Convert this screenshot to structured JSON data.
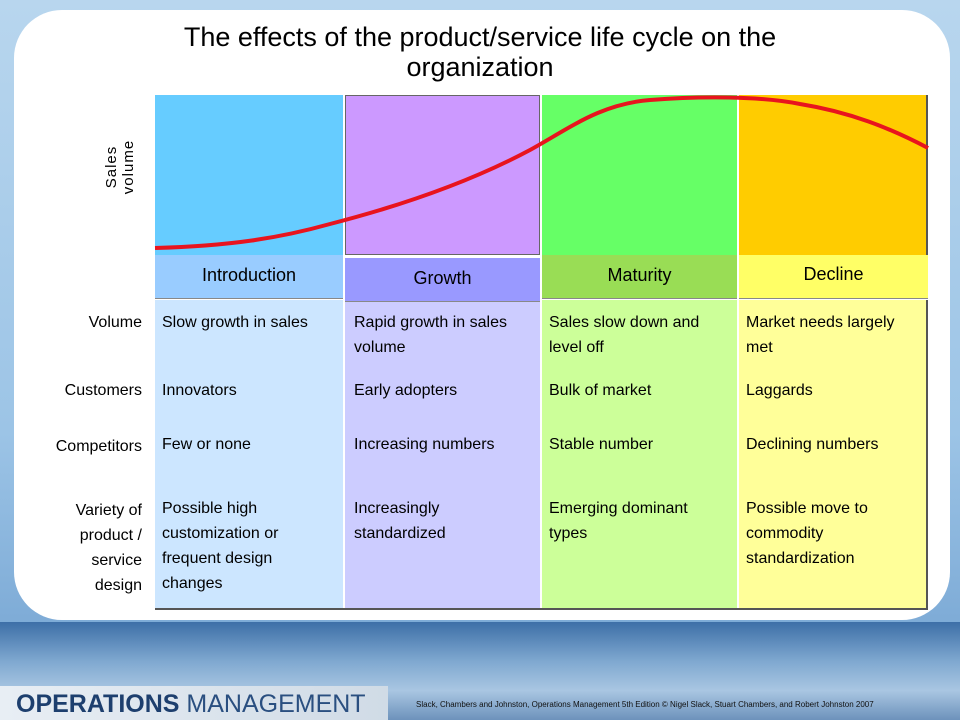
{
  "title": "The effects of the product/service life cycle on the organization",
  "y_axis_label": "Sales volume",
  "row_labels": [
    "Volume",
    "Customers",
    "Competitors",
    "Variety of product / service design"
  ],
  "stages": [
    {
      "name": "Introduction",
      "cells": [
        "Slow growth in sales",
        "Innovators",
        "Few or none",
        "Possible high customization or frequent design changes"
      ]
    },
    {
      "name": "Growth",
      "cells": [
        "Rapid growth in sales volume",
        "Early adopters",
        "Increasing numbers",
        "Increasingly standardized"
      ]
    },
    {
      "name": "Maturity",
      "cells": [
        "Sales slow down and level off",
        "Bulk of market",
        "Stable number",
        "Emerging dominant types"
      ]
    },
    {
      "name": "Decline",
      "cells": [
        "Market needs largely met",
        "Laggards",
        "Declining numbers",
        "Possible move to commodity standardization"
      ]
    }
  ],
  "footer": {
    "logo_bold": "OPERATIONS",
    "logo_light": "MANAGEMENT",
    "citation": "Slack, Chambers and Johnston, Operations Management 5th Edition © Nigel Slack, Stuart Chambers, and Robert Johnston 2007"
  }
}
